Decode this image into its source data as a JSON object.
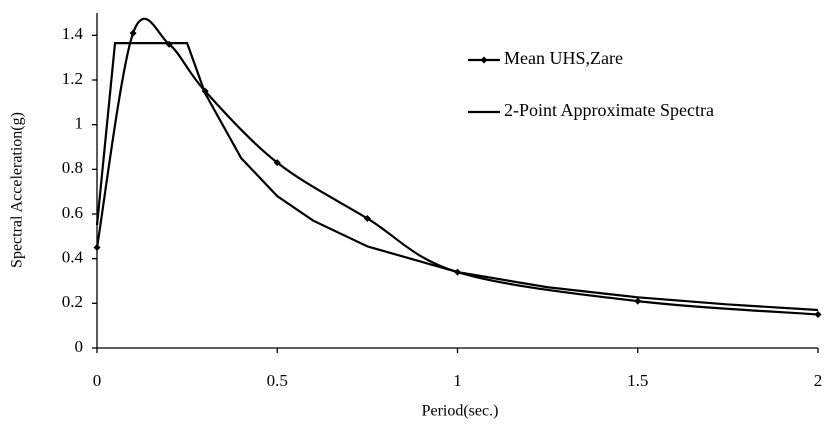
{
  "chart_data": {
    "type": "line",
    "xlabel": "Period(sec.)",
    "ylabel": "Spectral Acceleration(g)",
    "xlim": [
      0,
      2
    ],
    "xticks": [
      0,
      0.5,
      1,
      1.5,
      2
    ],
    "ylim": [
      0,
      1.5
    ],
    "yticks": [
      0,
      0.2,
      0.4,
      0.6,
      0.8,
      1,
      1.2,
      1.4
    ],
    "legend": "upper right",
    "series": [
      {
        "name": "Mean UHS,Zare",
        "color": "#000000",
        "marker": "diamond",
        "smooth": true,
        "x": [
          0,
          0.1,
          0.2,
          0.3,
          0.5,
          0.75,
          1,
          1.5,
          2
        ],
        "values": [
          0.45,
          1.41,
          1.36,
          1.15,
          0.83,
          0.58,
          0.34,
          0.21,
          0.15
        ]
      },
      {
        "name": "2-Point Approximate Spectra",
        "color": "#000000",
        "marker": "none",
        "smooth": false,
        "x": [
          0,
          0.05,
          0.25,
          0.3,
          0.4,
          0.5,
          0.6,
          0.75,
          1,
          1.25,
          1.5,
          1.75,
          2
        ],
        "values": [
          0.55,
          1.365,
          1.365,
          1.14,
          0.85,
          0.68,
          0.57,
          0.455,
          0.34,
          0.272,
          0.227,
          0.195,
          0.17
        ]
      }
    ]
  }
}
